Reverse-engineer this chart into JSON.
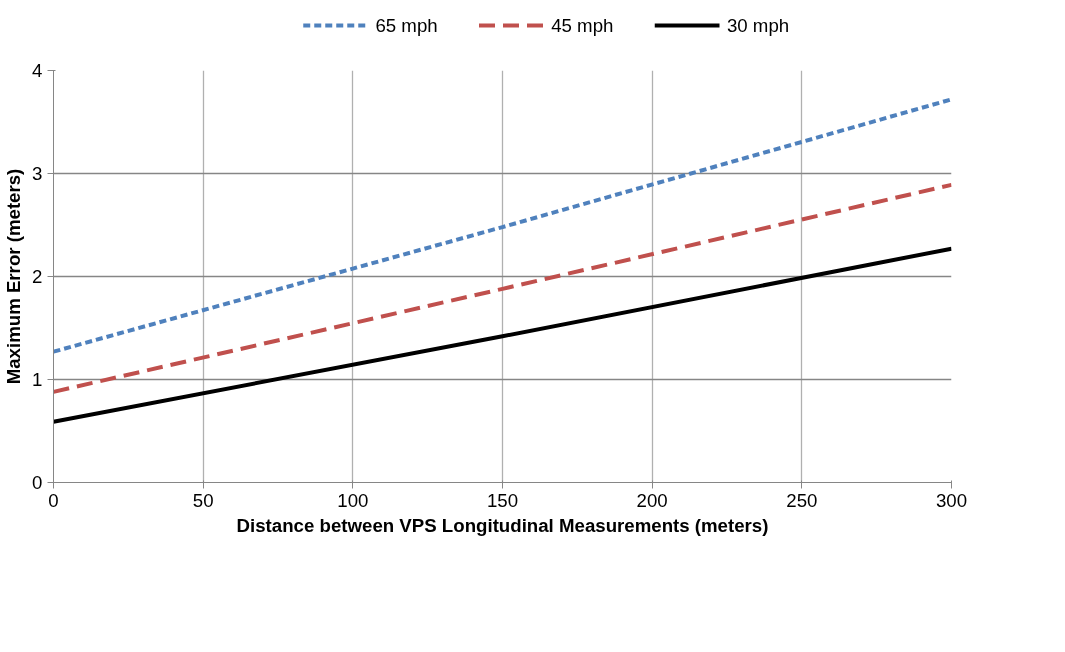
{
  "chart_data": {
    "type": "line",
    "xlabel": "Distance between VPS Longitudinal Measurements (meters)",
    "ylabel": "Maximum Error (meters)",
    "x": [
      0,
      150,
      300
    ],
    "series": [
      {
        "name": "65 mph",
        "color": "#4f81bd",
        "line_style": "dotted",
        "values": [
          1.27,
          2.48,
          3.72
        ]
      },
      {
        "name": "45 mph",
        "color": "#c0504d",
        "line_style": "dashed",
        "values": [
          0.88,
          1.88,
          2.89
        ]
      },
      {
        "name": "30 mph",
        "color": "#000000",
        "line_style": "solid",
        "values": [
          0.59,
          1.42,
          2.27
        ]
      }
    ],
    "xlim": [
      0,
      300
    ],
    "xticks": [
      0,
      50,
      100,
      150,
      200,
      250,
      300
    ],
    "ylim": [
      0,
      4
    ],
    "yticks": [
      0,
      1,
      2,
      3,
      4
    ],
    "grid": true,
    "legend": "top",
    "marker": "none"
  }
}
